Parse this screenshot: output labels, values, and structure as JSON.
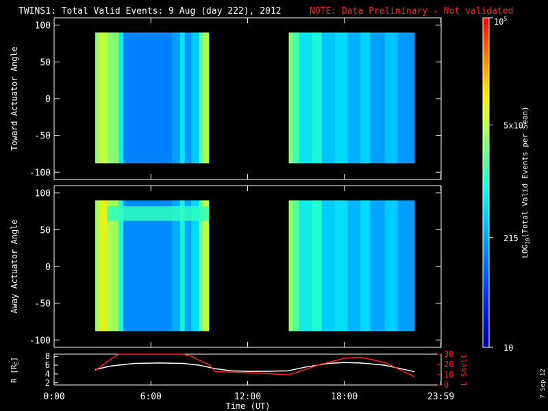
{
  "title": {
    "main": "TWINS1: Total Valid Events:  9 Aug (day 222), 2012",
    "note": "NOTE: Data Preliminary - Not validated",
    "main_color": "#ffffff",
    "note_color": "#ff2020"
  },
  "side_stamp": "7 Sep 12",
  "colorbar": {
    "label": "LOG",
    "label_sub": "10",
    "label_rest": "(Total Valid Events per Scan)",
    "ticks": [
      {
        "value": 10,
        "text": "10"
      },
      {
        "value": 215,
        "text": "215"
      },
      {
        "value": 5000,
        "text": "5x10",
        "sup": "3"
      },
      {
        "value": 100000,
        "text": "10",
        "sup": "5"
      }
    ],
    "range": [
      10,
      100000
    ],
    "scale": "log"
  },
  "chart_data": [
    {
      "type": "heatmap",
      "name": "toward",
      "ylabel": "Toward Actuator Angle",
      "ylim": [
        -110,
        110
      ],
      "yticks": [
        -100,
        -50,
        0,
        50,
        100
      ],
      "ytick_labels": [
        "-100",
        "-50",
        "0",
        "50",
        "100"
      ],
      "data_y_range": [
        -88,
        90
      ],
      "x_range_hours": [
        0,
        24
      ],
      "segments": [
        {
          "start": 2.55,
          "end": 9.6
        },
        {
          "start": 14.55,
          "end": 22.35
        }
      ],
      "columns": [
        {
          "t0": 2.55,
          "t1": 2.8,
          "value": 3500
        },
        {
          "t0": 2.8,
          "t1": 3.3,
          "value": 5500
        },
        {
          "t0": 3.3,
          "t1": 4.0,
          "value": 3000
        },
        {
          "t0": 4.0,
          "t1": 4.3,
          "value": 700
        },
        {
          "t0": 4.3,
          "t1": 7.3,
          "value": 130
        },
        {
          "t0": 7.3,
          "t1": 7.8,
          "value": 200
        },
        {
          "t0": 7.8,
          "t1": 8.1,
          "value": 600
        },
        {
          "t0": 8.1,
          "t1": 8.5,
          "value": 180
        },
        {
          "t0": 8.5,
          "t1": 9.0,
          "value": 400
        },
        {
          "t0": 9.0,
          "t1": 9.2,
          "value": 1800
        },
        {
          "t0": 9.2,
          "t1": 9.6,
          "value": 4500
        },
        {
          "t0": 14.55,
          "t1": 14.8,
          "value": 3000
        },
        {
          "t0": 14.8,
          "t1": 15.2,
          "value": 1500
        },
        {
          "t0": 15.2,
          "t1": 16.0,
          "value": 600
        },
        {
          "t0": 16.0,
          "t1": 16.6,
          "value": 900
        },
        {
          "t0": 16.6,
          "t1": 17.4,
          "value": 350
        },
        {
          "t0": 17.4,
          "t1": 18.2,
          "value": 500
        },
        {
          "t0": 18.2,
          "t1": 19.0,
          "value": 250
        },
        {
          "t0": 19.0,
          "t1": 19.6,
          "value": 450
        },
        {
          "t0": 19.6,
          "t1": 20.5,
          "value": 200
        },
        {
          "t0": 20.5,
          "t1": 21.3,
          "value": 350
        },
        {
          "t0": 21.3,
          "t1": 22.35,
          "value": 180
        }
      ]
    },
    {
      "type": "heatmap",
      "name": "away",
      "ylabel": "Away Actuator Angle",
      "ylim": [
        -110,
        110
      ],
      "yticks": [
        -100,
        -50,
        0,
        50,
        100
      ],
      "ytick_labels": [
        "-100",
        "-50",
        "0",
        "50",
        "100"
      ],
      "data_y_range": [
        -88,
        90
      ],
      "x_range_hours": [
        0,
        24
      ],
      "segments": [
        {
          "start": 2.55,
          "end": 9.6
        },
        {
          "start": 14.55,
          "end": 22.35
        }
      ],
      "columns": [
        {
          "t0": 2.55,
          "t1": 2.8,
          "value": 4000
        },
        {
          "t0": 2.8,
          "t1": 3.3,
          "value": 9000
        },
        {
          "t0": 3.3,
          "t1": 4.0,
          "value": 4000
        },
        {
          "t0": 4.0,
          "t1": 4.3,
          "value": 900
        },
        {
          "t0": 4.3,
          "t1": 7.3,
          "value": 150
        },
        {
          "t0": 7.3,
          "t1": 7.8,
          "value": 250
        },
        {
          "t0": 7.8,
          "t1": 8.1,
          "value": 800
        },
        {
          "t0": 8.1,
          "t1": 8.5,
          "value": 220
        },
        {
          "t0": 8.5,
          "t1": 9.0,
          "value": 500
        },
        {
          "t0": 9.0,
          "t1": 9.2,
          "value": 2200
        },
        {
          "t0": 9.2,
          "t1": 9.6,
          "value": 5500
        },
        {
          "t0": 14.55,
          "t1": 14.8,
          "value": 3500
        },
        {
          "t0": 14.8,
          "t1": 15.2,
          "value": 1800
        },
        {
          "t0": 15.2,
          "t1": 16.0,
          "value": 700
        },
        {
          "t0": 16.0,
          "t1": 16.6,
          "value": 1000
        },
        {
          "t0": 16.6,
          "t1": 17.4,
          "value": 400
        },
        {
          "t0": 17.4,
          "t1": 18.2,
          "value": 550
        },
        {
          "t0": 18.2,
          "t1": 19.0,
          "value": 280
        },
        {
          "t0": 19.0,
          "t1": 19.6,
          "value": 500
        },
        {
          "t0": 19.6,
          "t1": 20.5,
          "value": 220
        },
        {
          "t0": 20.5,
          "t1": 21.3,
          "value": 400
        },
        {
          "t0": 21.3,
          "t1": 22.35,
          "value": 200
        }
      ],
      "band": {
        "y0": 62,
        "y1": 82,
        "t0": 3.3,
        "t1": 9.6,
        "value": 1200
      }
    },
    {
      "type": "line",
      "name": "orbit",
      "ylabel_left": "R [R",
      "ylabel_left_sub": "E",
      "ylabel_left_end": "]",
      "ylabel_right": "L Shell",
      "xlabel": "Time (UT)",
      "xticks_hours": [
        0,
        6,
        12,
        18,
        23.983
      ],
      "xtick_labels": [
        "0:00",
        "6:00",
        "12:00",
        "18:00",
        "23:59"
      ],
      "left_axis": {
        "ylim": [
          1.5,
          8.5
        ],
        "yticks": [
          2,
          4,
          6,
          8
        ],
        "ytick_labels": [
          "2",
          "4",
          "6",
          "8"
        ]
      },
      "right_axis": {
        "ylim": [
          0,
          30
        ],
        "yticks": [
          0,
          10,
          20,
          30
        ],
        "ytick_labels": [
          "0",
          "10",
          "20",
          "30"
        ]
      },
      "series": [
        {
          "name": "R",
          "axis": "left",
          "color": "#ffffff",
          "x": [
            2.55,
            3.5,
            5.0,
            6.5,
            8.0,
            9.0,
            10.0,
            11.0,
            12.0,
            13.0,
            14.5,
            15.5,
            17.0,
            18.0,
            19.0,
            20.5,
            22.35
          ],
          "y": [
            5.0,
            5.8,
            6.4,
            6.5,
            6.4,
            6.0,
            5.2,
            4.7,
            4.6,
            4.6,
            4.7,
            5.5,
            6.4,
            6.6,
            6.5,
            6.0,
            4.5
          ]
        },
        {
          "name": "L Shell",
          "axis": "right",
          "color": "#ff2020",
          "x": [
            2.55,
            3.5,
            4.0,
            8.0,
            8.5,
            9.0,
            9.6,
            10.0,
            12.0,
            14.5,
            15.0,
            16.5,
            18.0,
            19.0,
            20.5,
            22.35
          ],
          "y": [
            14,
            25,
            32,
            32,
            28,
            24,
            20,
            13,
            12,
            10,
            12,
            20,
            26,
            27,
            22,
            8
          ]
        }
      ]
    }
  ]
}
